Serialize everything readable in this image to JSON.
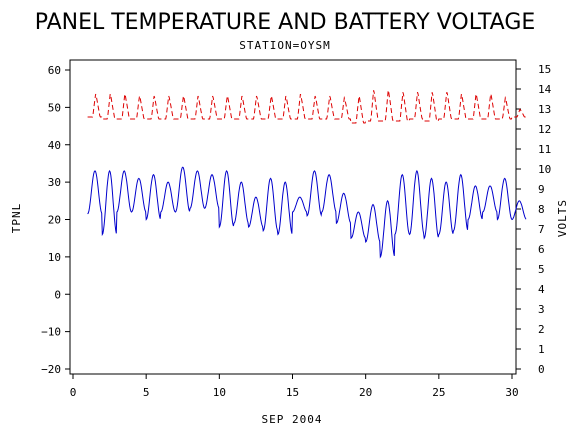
{
  "chart_data": {
    "type": "line",
    "title": "PANEL TEMPERATURE AND BATTERY VOLTAGE",
    "subtitle": "STATION=OYSM",
    "xlabel": "SEP 2004",
    "ylabel_left": "TPNL",
    "ylabel_right": "VOLTS",
    "xlim": [
      0,
      30
    ],
    "ylim_left": [
      -20,
      60
    ],
    "ylim_right": [
      0,
      15
    ],
    "x_ticks": [
      0,
      5,
      10,
      15,
      20,
      25,
      30
    ],
    "y_left_ticks": [
      -20,
      -10,
      0,
      10,
      20,
      30,
      40,
      50,
      60
    ],
    "y_right_ticks": [
      0,
      1,
      2,
      3,
      4,
      5,
      6,
      7,
      8,
      9,
      10,
      11,
      12,
      13,
      14,
      15
    ],
    "grid": false,
    "series": [
      {
        "name": "TPNL",
        "axis": "left",
        "color": "#0000cc",
        "dash": "solid",
        "daily": [
          [
            1,
            21.5,
            33
          ],
          [
            2,
            16,
            33
          ],
          [
            3,
            22,
            33
          ],
          [
            4,
            22,
            31
          ],
          [
            5,
            20,
            32
          ],
          [
            6,
            22,
            30
          ],
          [
            7,
            22,
            34
          ],
          [
            8,
            23,
            33
          ],
          [
            9,
            23,
            32
          ],
          [
            10,
            18,
            33
          ],
          [
            11,
            19,
            30
          ],
          [
            12,
            18,
            26
          ],
          [
            13,
            17,
            31
          ],
          [
            14,
            16,
            30
          ],
          [
            15,
            22,
            26
          ],
          [
            16,
            21,
            33
          ],
          [
            17,
            22,
            32
          ],
          [
            18,
            19,
            27
          ],
          [
            19,
            15,
            22
          ],
          [
            20,
            14,
            24
          ],
          [
            21,
            10,
            25
          ],
          [
            22,
            16,
            32
          ],
          [
            23,
            16,
            33
          ],
          [
            24,
            15,
            31
          ],
          [
            25,
            16,
            30
          ],
          [
            26,
            17,
            32
          ],
          [
            27,
            20,
            29
          ],
          [
            28,
            22,
            29
          ],
          [
            29,
            20,
            31
          ],
          [
            30,
            20,
            25
          ]
        ]
      },
      {
        "name": "VOLTS",
        "axis": "right",
        "color": "#dd0000",
        "dash": "dashed",
        "daily": [
          [
            1,
            12.6,
            13.8
          ],
          [
            2,
            12.5,
            13.8
          ],
          [
            3,
            12.5,
            13.8
          ],
          [
            4,
            12.5,
            13.7
          ],
          [
            5,
            12.5,
            13.7
          ],
          [
            6,
            12.5,
            13.7
          ],
          [
            7,
            12.5,
            13.7
          ],
          [
            8,
            12.5,
            13.7
          ],
          [
            9,
            12.5,
            13.7
          ],
          [
            10,
            12.5,
            13.7
          ],
          [
            11,
            12.5,
            13.7
          ],
          [
            12,
            12.5,
            13.7
          ],
          [
            13,
            12.5,
            13.7
          ],
          [
            14,
            12.5,
            13.7
          ],
          [
            15,
            12.5,
            13.8
          ],
          [
            16,
            12.5,
            13.7
          ],
          [
            17,
            12.5,
            13.7
          ],
          [
            18,
            12.5,
            13.6
          ],
          [
            19,
            12.3,
            13.7
          ],
          [
            20,
            12.4,
            14.0
          ],
          [
            21,
            12.4,
            14.0
          ],
          [
            22,
            12.4,
            13.9
          ],
          [
            23,
            12.5,
            13.9
          ],
          [
            24,
            12.4,
            13.9
          ],
          [
            25,
            12.5,
            13.9
          ],
          [
            26,
            12.5,
            13.8
          ],
          [
            27,
            12.5,
            13.8
          ],
          [
            28,
            12.5,
            13.8
          ],
          [
            29,
            12.5,
            13.6
          ],
          [
            30,
            12.6,
            13.0
          ]
        ]
      }
    ]
  }
}
